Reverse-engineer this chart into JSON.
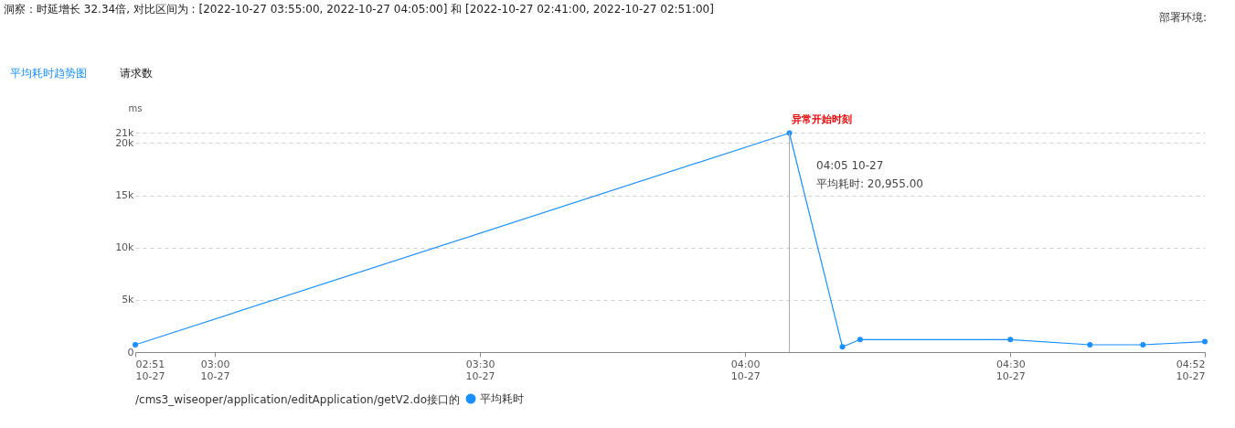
{
  "chart_data": {
    "type": "line",
    "title": "洞察：时延增长 32.34倍, 对比区间为 : [2022-10-27 03:55:00, 2022-10-27 04:05:00] 和 [2022-10-27 02:41:00, 2022-10-27 02:51:00]",
    "ylabel": "ms",
    "legend_title": "/cms3_wiseoper/application/editApplication/getV2.do接口的",
    "x": [
      "2022-10-27T02:51",
      "2022-10-27T04:05",
      "2022-10-27T04:11",
      "2022-10-27T04:13",
      "2022-10-27T04:30",
      "2022-10-27T04:39",
      "2022-10-27T04:45",
      "2022-10-27T04:52"
    ],
    "series": [
      {
        "name": "平均耗时",
        "color": "#1890ff",
        "values": [
          700,
          20955,
          500,
          1200,
          1200,
          700,
          700,
          1000
        ]
      }
    ],
    "xlim": [
      "2022-10-27T02:51",
      "2022-10-27T04:52"
    ],
    "xticks": [
      {
        "value": "2022-10-27T02:51",
        "label": "02:51 10-27"
      },
      {
        "value": "2022-10-27T03:00",
        "label": "03:00 10-27"
      },
      {
        "value": "2022-10-27T03:30",
        "label": "03:30 10-27"
      },
      {
        "value": "2022-10-27T04:00",
        "label": "04:00 10-27"
      },
      {
        "value": "2022-10-27T04:30",
        "label": "04:30 10-27"
      },
      {
        "value": "2022-10-27T04:52",
        "label": "04:52 10-27"
      }
    ],
    "ylim": [
      0,
      21000
    ],
    "yticks": [
      0,
      {
        "value": 5000,
        "label": "5k"
      },
      {
        "value": 10000,
        "label": "10k"
      },
      {
        "value": 15000,
        "label": "15k"
      },
      {
        "value": 20000,
        "label": "20k"
      },
      {
        "value": 21000,
        "label": "21k"
      }
    ],
    "ref_lines": [
      {
        "axis": "x",
        "value": "2022-10-27T04:05",
        "label": "异常开始时刻",
        "color": "#aaaaaa"
      }
    ],
    "annotations": [
      "平均耗时趋势图",
      "请求数",
      "部署环境:",
      "04:05 10-27",
      "平均耗时: 20,955.00"
    ],
    "grid": "y",
    "legend": "bottom",
    "marker": "circle",
    "line_style": "solid"
  }
}
